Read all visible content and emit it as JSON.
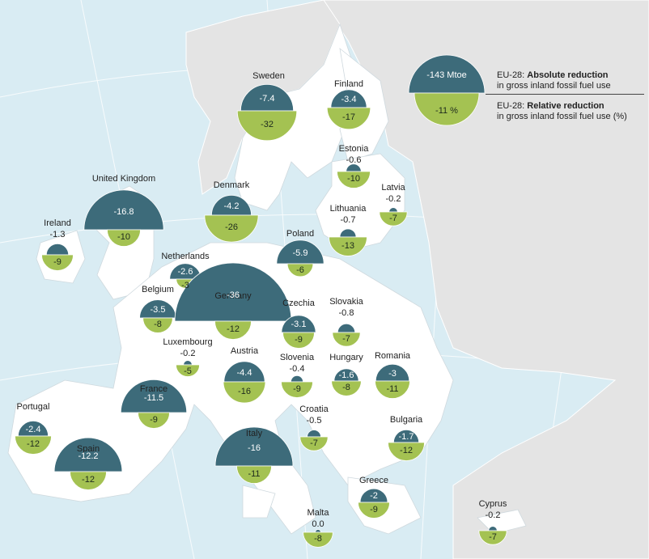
{
  "colors": {
    "absolute": "#3d6b7a",
    "relative": "#a4c252",
    "land_eu": "#ffffff",
    "land_other": "#e4e4e4",
    "sea": "#d9ecf3"
  },
  "legend": {
    "absolute_value": "-143 Mtoe",
    "relative_value": "-11 %",
    "absolute_prefix": "EU-28: ",
    "absolute_bold": "Absolute reduction",
    "absolute_line2": "in gross inland fossil fuel use",
    "relative_prefix": "EU-28: ",
    "relative_bold": "Relative reduction",
    "relative_line2": "in gross inland fossil fuel use (%)"
  },
  "countries": [
    {
      "name": "Sweden",
      "absolute": "-7.4",
      "relative": "-32",
      "absolute_num": -7.4,
      "relative_num": -32
    },
    {
      "name": "Finland",
      "absolute": "-3.4",
      "relative": "-17",
      "absolute_num": -3.4,
      "relative_num": -17
    },
    {
      "name": "Estonia",
      "absolute": "-0.6",
      "relative": "-10",
      "absolute_num": -0.6,
      "relative_num": -10
    },
    {
      "name": "Latvia",
      "absolute": "-0.2",
      "relative": "-7",
      "absolute_num": -0.2,
      "relative_num": -7
    },
    {
      "name": "Lithuania",
      "absolute": "-0.7",
      "relative": "-13",
      "absolute_num": -0.7,
      "relative_num": -13
    },
    {
      "name": "Denmark",
      "absolute": "-4.2",
      "relative": "-26",
      "absolute_num": -4.2,
      "relative_num": -26
    },
    {
      "name": "United Kingdom",
      "absolute": "-16.8",
      "relative": "-10",
      "absolute_num": -16.8,
      "relative_num": -10
    },
    {
      "name": "Ireland",
      "absolute": "-1.3",
      "relative": "-9",
      "absolute_num": -1.3,
      "relative_num": -9
    },
    {
      "name": "Poland",
      "absolute": "-5.9",
      "relative": "-6",
      "absolute_num": -5.9,
      "relative_num": -6
    },
    {
      "name": "Netherlands",
      "absolute": "-2.6",
      "relative": "-3",
      "absolute_num": -2.6,
      "relative_num": -3
    },
    {
      "name": "Belgium",
      "absolute": "-3.5",
      "relative": "-8",
      "absolute_num": -3.5,
      "relative_num": -8
    },
    {
      "name": "Germany",
      "absolute": "-36",
      "relative": "-12",
      "absolute_num": -36,
      "relative_num": -12
    },
    {
      "name": "Czechia",
      "absolute": "-3.1",
      "relative": "-9",
      "absolute_num": -3.1,
      "relative_num": -9
    },
    {
      "name": "Slovakia",
      "absolute": "-0.8",
      "relative": "-7",
      "absolute_num": -0.8,
      "relative_num": -7
    },
    {
      "name": "Luxembourg",
      "absolute": "-0.2",
      "relative": "-5",
      "absolute_num": -0.2,
      "relative_num": -5
    },
    {
      "name": "Austria",
      "absolute": "-4.4",
      "relative": "-16",
      "absolute_num": -4.4,
      "relative_num": -16
    },
    {
      "name": "Slovenia",
      "absolute": "-0.4",
      "relative": "-9",
      "absolute_num": -0.4,
      "relative_num": -9
    },
    {
      "name": "Hungary",
      "absolute": "-1.6",
      "relative": "-8",
      "absolute_num": -1.6,
      "relative_num": -8
    },
    {
      "name": "Romania",
      "absolute": "-3",
      "relative": "-11",
      "absolute_num": -3,
      "relative_num": -11
    },
    {
      "name": "France",
      "absolute": "-11.5",
      "relative": "-9",
      "absolute_num": -11.5,
      "relative_num": -9
    },
    {
      "name": "Portugal",
      "absolute": "-2.4",
      "relative": "-12",
      "absolute_num": -2.4,
      "relative_num": -12
    },
    {
      "name": "Spain",
      "absolute": "-12.2",
      "relative": "-12",
      "absolute_num": -12.2,
      "relative_num": -12
    },
    {
      "name": "Italy",
      "absolute": "-16",
      "relative": "-11",
      "absolute_num": -16,
      "relative_num": -11
    },
    {
      "name": "Croatia",
      "absolute": "-0.5",
      "relative": "-7",
      "absolute_num": -0.5,
      "relative_num": -7
    },
    {
      "name": "Bulgaria",
      "absolute": "-1.7",
      "relative": "-12",
      "absolute_num": -1.7,
      "relative_num": -12
    },
    {
      "name": "Greece",
      "absolute": "-2",
      "relative": "-9",
      "absolute_num": -2,
      "relative_num": -9
    },
    {
      "name": "Malta",
      "absolute": "0.0",
      "relative": "-8",
      "absolute_num": 0.0,
      "relative_num": -8
    },
    {
      "name": "Cyprus",
      "absolute": "-0.2",
      "relative": "-7",
      "absolute_num": -0.2,
      "relative_num": -7
    }
  ]
}
